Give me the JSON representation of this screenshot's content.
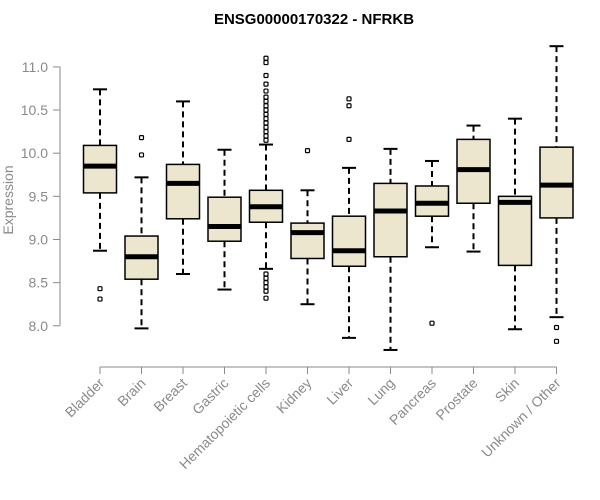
{
  "chart_data": {
    "type": "boxplot",
    "title": "ENSG00000170322 - NFRKB",
    "xlabel": "",
    "ylabel": "Expression",
    "ylim": [
      7.65,
      11.3
    ],
    "yticks": [
      "8.0",
      "8.5",
      "9.0",
      "9.5",
      "10.0",
      "10.5",
      "11.0"
    ],
    "box_color": "#ede6cf",
    "axis_color": "#8a8a8a",
    "categories": [
      "Bladder",
      "Brain",
      "Breast",
      "Gastric",
      "Hematopoietic cells",
      "Kidney",
      "Liver",
      "Lung",
      "Pancreas",
      "Prostate",
      "Skin",
      "Unknown / Other"
    ],
    "boxes": [
      {
        "name": "Bladder",
        "whisker_low": 8.87,
        "q1": 9.54,
        "median": 9.85,
        "q3": 10.09,
        "whisker_high": 10.74,
        "outliers": [
          8.43,
          8.31
        ]
      },
      {
        "name": "Brain",
        "whisker_low": 7.97,
        "q1": 8.54,
        "median": 8.8,
        "q3": 9.04,
        "whisker_high": 9.72,
        "outliers": [
          10.18,
          9.98
        ]
      },
      {
        "name": "Breast",
        "whisker_low": 8.6,
        "q1": 9.24,
        "median": 9.65,
        "q3": 9.87,
        "whisker_high": 10.6,
        "outliers": []
      },
      {
        "name": "Gastric",
        "whisker_low": 8.42,
        "q1": 8.98,
        "median": 9.15,
        "q3": 9.49,
        "whisker_high": 10.04,
        "outliers": []
      },
      {
        "name": "Hematopoietic cells",
        "whisker_low": 8.66,
        "q1": 9.2,
        "median": 9.38,
        "q3": 9.57,
        "whisker_high": 10.1,
        "outliers": [
          11.1,
          11.05,
          10.9,
          10.8,
          10.72,
          10.65,
          10.6,
          10.55,
          10.5,
          10.45,
          10.4,
          10.35,
          10.3,
          10.25,
          10.2,
          10.15,
          8.6,
          8.55,
          8.5,
          8.45,
          8.4,
          8.32
        ]
      },
      {
        "name": "Kidney",
        "whisker_low": 8.25,
        "q1": 8.78,
        "median": 9.08,
        "q3": 9.19,
        "whisker_high": 9.57,
        "outliers": [
          10.03
        ]
      },
      {
        "name": "Liver",
        "whisker_low": 7.86,
        "q1": 8.69,
        "median": 8.87,
        "q3": 9.27,
        "whisker_high": 9.83,
        "outliers": [
          10.63,
          10.55,
          10.16
        ]
      },
      {
        "name": "Lung",
        "whisker_low": 7.72,
        "q1": 8.8,
        "median": 9.33,
        "q3": 9.65,
        "whisker_high": 10.05,
        "outliers": []
      },
      {
        "name": "Pancreas",
        "whisker_low": 8.91,
        "q1": 9.27,
        "median": 9.42,
        "q3": 9.62,
        "whisker_high": 9.91,
        "outliers": [
          8.03
        ]
      },
      {
        "name": "Prostate",
        "whisker_low": 8.86,
        "q1": 9.42,
        "median": 9.81,
        "q3": 10.16,
        "whisker_high": 10.32,
        "outliers": []
      },
      {
        "name": "Skin",
        "whisker_low": 7.96,
        "q1": 8.7,
        "median": 9.43,
        "q3": 9.5,
        "whisker_high": 10.4,
        "outliers": []
      },
      {
        "name": "Unknown / Other",
        "whisker_low": 8.1,
        "q1": 9.25,
        "median": 9.63,
        "q3": 10.07,
        "whisker_high": 11.24,
        "outliers": [
          7.98,
          7.82
        ]
      }
    ]
  }
}
